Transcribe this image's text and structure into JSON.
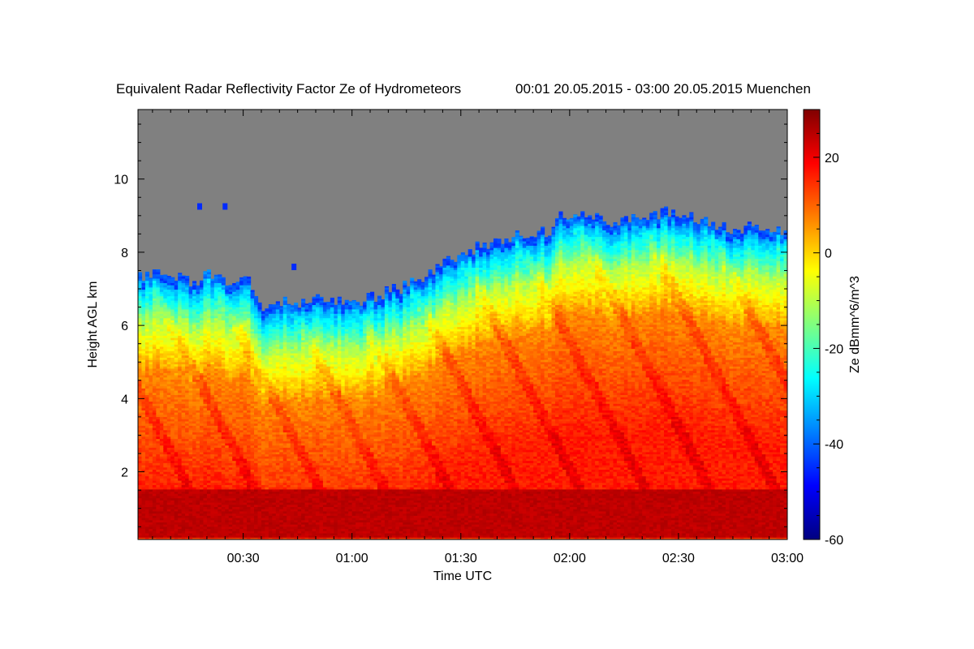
{
  "chart_data": {
    "type": "heatmap",
    "title": "Equivalent Radar Reflectivity Factor Ze of Hydrometeors",
    "subtitle": "00:01 20.05.2015 - 03:00 20.05.2015 Muenchen",
    "xlabel": "Time UTC",
    "ylabel": "Height AGL km",
    "colorbar_label": "Ze dBmm^6/m^3",
    "xlim_minutes": [
      1,
      180
    ],
    "x_ticks": [
      {
        "label": "00:30",
        "value": 30
      },
      {
        "label": "01:00",
        "value": 60
      },
      {
        "label": "01:30",
        "value": 90
      },
      {
        "label": "02:00",
        "value": 120
      },
      {
        "label": "02:30",
        "value": 150
      },
      {
        "label": "03:00",
        "value": 180
      }
    ],
    "ylim": [
      0.15,
      11.9
    ],
    "y_ticks": [
      2,
      4,
      6,
      8,
      10
    ],
    "color_scale": {
      "min": -60,
      "max": 30,
      "ticks": [
        20,
        0,
        -20,
        -40,
        -60
      ],
      "colormap": "jet",
      "no_data_color": "#808080"
    },
    "features": {
      "echo_top_km": [
        {
          "t": 1,
          "h": 7.4
        },
        {
          "t": 10,
          "h": 7.35
        },
        {
          "t": 16,
          "h": 7.1
        },
        {
          "t": 20,
          "h": 7.4
        },
        {
          "t": 26,
          "h": 7.2
        },
        {
          "t": 31,
          "h": 7.3
        },
        {
          "t": 35,
          "h": 6.5
        },
        {
          "t": 40,
          "h": 6.6
        },
        {
          "t": 50,
          "h": 6.7
        },
        {
          "t": 60,
          "h": 6.6
        },
        {
          "t": 66,
          "h": 6.8
        },
        {
          "t": 72,
          "h": 7.0
        },
        {
          "t": 78,
          "h": 7.2
        },
        {
          "t": 84,
          "h": 7.6
        },
        {
          "t": 90,
          "h": 8.0
        },
        {
          "t": 96,
          "h": 8.2
        },
        {
          "t": 102,
          "h": 8.4
        },
        {
          "t": 108,
          "h": 8.5
        },
        {
          "t": 114,
          "h": 8.6
        },
        {
          "t": 117,
          "h": 9.0
        },
        {
          "t": 124,
          "h": 9.0
        },
        {
          "t": 132,
          "h": 8.8
        },
        {
          "t": 140,
          "h": 9.0
        },
        {
          "t": 148,
          "h": 9.1
        },
        {
          "t": 156,
          "h": 8.9
        },
        {
          "t": 164,
          "h": 8.6
        },
        {
          "t": 172,
          "h": 8.7
        },
        {
          "t": 180,
          "h": 8.6
        }
      ],
      "bright_band_km": [
        0.2,
        1.5
      ],
      "bright_band_ze": 26,
      "isolated_echoes": [
        {
          "t": 18,
          "h": 9.25
        },
        {
          "t": 25,
          "h": 9.25
        },
        {
          "t": 44,
          "h": 7.6
        }
      ]
    }
  }
}
